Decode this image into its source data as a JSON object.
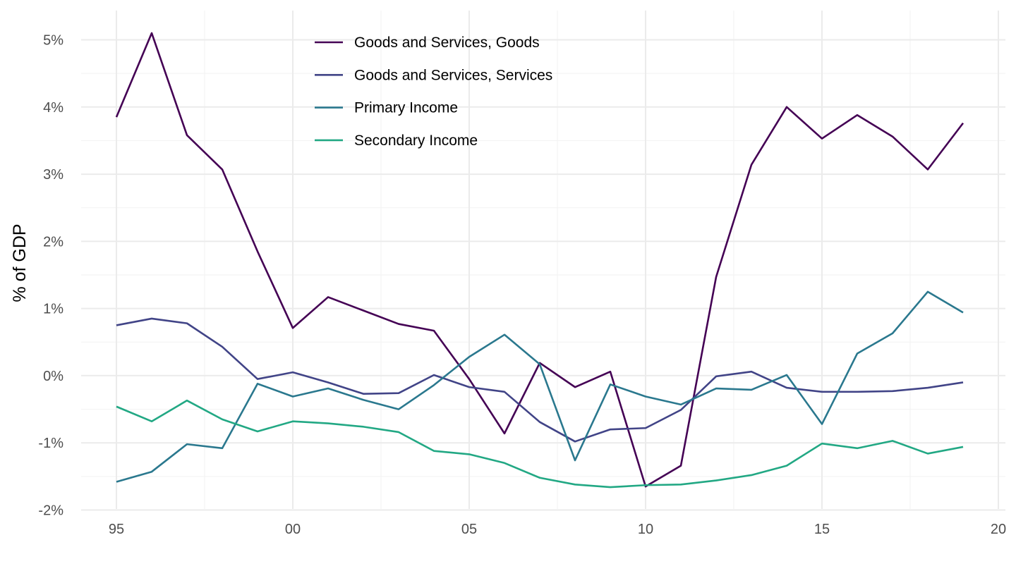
{
  "chart_data": {
    "type": "line",
    "xlabel": "",
    "ylabel": "% of GDP",
    "x_tick_labels": [
      "95",
      "00",
      "05",
      "10",
      "15",
      "20"
    ],
    "y_tick_labels": [
      "-2%",
      "-1%",
      "0%",
      "1%",
      "2%",
      "3%",
      "4%",
      "5%"
    ],
    "xlim": [
      1995,
      2020
    ],
    "ylim": [
      -2,
      5
    ],
    "grid": true,
    "legend_position": "top",
    "x": [
      1995,
      1996,
      1997,
      1998,
      1999,
      2000,
      2001,
      2002,
      2003,
      2004,
      2005,
      2006,
      2007,
      2008,
      2009,
      2010,
      2011,
      2012,
      2013,
      2014,
      2015,
      2016,
      2017,
      2018,
      2019
    ],
    "series": [
      {
        "name": "Goods and Services, Goods",
        "color": "#440154",
        "values": [
          3.85,
          5.1,
          3.58,
          3.07,
          1.85,
          0.71,
          1.17,
          0.97,
          0.77,
          0.67,
          -0.05,
          -0.86,
          0.19,
          -0.17,
          0.06,
          -1.65,
          -1.34,
          1.47,
          3.14,
          4.0,
          3.53,
          3.88,
          3.56,
          3.07,
          3.76
        ]
      },
      {
        "name": "Goods and Services, Services",
        "color": "#414487",
        "values": [
          0.75,
          0.85,
          0.78,
          0.43,
          -0.05,
          0.05,
          -0.1,
          -0.27,
          -0.26,
          0.01,
          -0.17,
          -0.24,
          -0.69,
          -0.98,
          -0.8,
          -0.78,
          -0.51,
          -0.01,
          0.06,
          -0.18,
          -0.24,
          -0.24,
          -0.23,
          -0.18,
          -0.1
        ]
      },
      {
        "name": "Primary Income",
        "color": "#2A788E",
        "values": [
          -1.58,
          -1.43,
          -1.02,
          -1.08,
          -0.12,
          -0.31,
          -0.19,
          -0.36,
          -0.5,
          -0.14,
          0.28,
          0.61,
          0.17,
          -1.26,
          -0.13,
          -0.31,
          -0.43,
          -0.19,
          -0.21,
          0.01,
          -0.72,
          0.33,
          0.63,
          1.25,
          0.94
        ]
      },
      {
        "name": "Secondary Income",
        "color": "#22A884",
        "values": [
          -0.46,
          -0.68,
          -0.37,
          -0.65,
          -0.83,
          -0.68,
          -0.71,
          -0.76,
          -0.84,
          -1.12,
          -1.17,
          -1.3,
          -1.52,
          -1.62,
          -1.66,
          -1.63,
          -1.62,
          -1.56,
          -1.48,
          -1.34,
          -1.01,
          -1.08,
          -0.97,
          -1.16,
          -1.06
        ]
      }
    ]
  }
}
